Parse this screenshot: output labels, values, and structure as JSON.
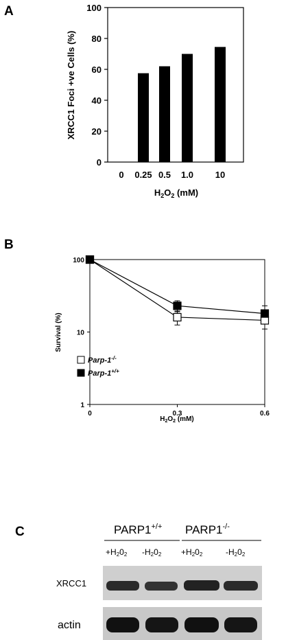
{
  "panels": {
    "a": {
      "letter": "A"
    },
    "b": {
      "letter": "B"
    },
    "c": {
      "letter": "C"
    }
  },
  "chart_data": [
    {
      "type": "bar",
      "categories": [
        "0",
        "0.25",
        "0.5",
        "1.0",
        "10"
      ],
      "values": [
        0,
        57.5,
        62,
        70,
        74.5
      ],
      "ylabel": "XRCC1 Foci +ve Cells (%)",
      "xlabel": "H2O2 (mM)",
      "ylim": [
        0,
        100
      ],
      "yticks": [
        0,
        20,
        40,
        60,
        80,
        100
      ],
      "bar_color": "#000000"
    },
    {
      "type": "line",
      "xlabel": "H2O2 (mM)",
      "ylabel": "Survival (%)",
      "yscale": "log",
      "ylim": [
        1,
        100
      ],
      "yticks": [
        "1",
        "10",
        "100"
      ],
      "xlim": [
        0,
        0.6
      ],
      "xticks": [
        "0",
        "0.3",
        "0.6"
      ],
      "legend_position": "lower-left",
      "series": [
        {
          "name": "Parp-1-/-",
          "marker": "open-square",
          "x": [
            0,
            0.3,
            0.6
          ],
          "y": [
            100,
            16,
            14.5
          ],
          "err": [
            0,
            3.5,
            3.5
          ]
        },
        {
          "name": "Parp-1+/+",
          "marker": "filled-square",
          "x": [
            0,
            0.3,
            0.6
          ],
          "y": [
            100,
            23,
            18
          ],
          "err": [
            0,
            4,
            5
          ]
        }
      ]
    }
  ],
  "blot": {
    "groups": [
      "PARP1+/+",
      "PARP1-/-"
    ],
    "lanes": [
      "+H2O2",
      "-H2O2",
      "+H2O2",
      "-H2O2"
    ],
    "rows": [
      "XRCC1",
      "actin"
    ]
  }
}
